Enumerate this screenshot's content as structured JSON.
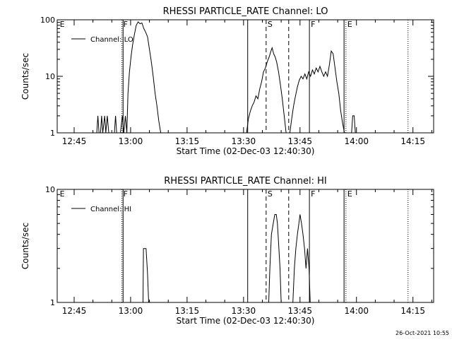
{
  "footer": {
    "timestamp": "26-Oct-2021 10:55"
  },
  "chart_data": [
    {
      "type": "line",
      "title": "RHESSI PARTICLE_RATE Channel: LO",
      "xlabel": "Start Time (02-Dec-03 12:40:30)",
      "ylabel": "Counts/sec",
      "x_unit": "minutes since 12:40:30",
      "xlim": [
        0,
        100
      ],
      "ylim": [
        1,
        100
      ],
      "yscale": "log",
      "xticks": [
        {
          "t": 4.5,
          "label": "12:45"
        },
        {
          "t": 19.5,
          "label": "13:00"
        },
        {
          "t": 34.5,
          "label": "13:15"
        },
        {
          "t": 49.5,
          "label": "13:30"
        },
        {
          "t": 64.5,
          "label": "13:45"
        },
        {
          "t": 79.5,
          "label": "14:00"
        },
        {
          "t": 94.5,
          "label": "14:15"
        }
      ],
      "yticks": [
        {
          "v": 1,
          "label": "1"
        },
        {
          "v": 10,
          "label": "10"
        },
        {
          "v": 100,
          "label": "100"
        }
      ],
      "legend": {
        "label": "Channel: LO",
        "position": "top-left"
      },
      "markers": [
        {
          "t": 0.3,
          "label": "E",
          "style": "none"
        },
        {
          "t": 17.2,
          "label": "F",
          "style": "dotted"
        },
        {
          "t": 17.5,
          "label": "",
          "style": "solid"
        },
        {
          "t": 50.6,
          "label": "",
          "style": "solid"
        },
        {
          "t": 55.5,
          "label": "S",
          "style": "dashed"
        },
        {
          "t": 61.5,
          "label": "",
          "style": "dashed"
        },
        {
          "t": 67.0,
          "label": "F",
          "style": "solid"
        },
        {
          "t": 76.2,
          "label": "",
          "style": "solid"
        },
        {
          "t": 76.7,
          "label": "E",
          "style": "dotted"
        },
        {
          "t": 93.2,
          "label": "",
          "style": "dotted"
        }
      ],
      "series": [
        {
          "name": "Channel: LO",
          "segments": [
            [
              [
                10.5,
                1
              ],
              [
                10.8,
                2
              ],
              [
                11.1,
                1
              ],
              [
                11.5,
                1
              ],
              [
                11.8,
                2
              ],
              [
                12.1,
                1
              ],
              [
                12.6,
                2
              ],
              [
                12.9,
                1
              ],
              [
                13.3,
                2
              ],
              [
                13.7,
                1
              ]
            ],
            [
              [
                15.2,
                1
              ],
              [
                15.5,
                2
              ],
              [
                15.8,
                1
              ]
            ],
            [
              [
                16.8,
                1
              ],
              [
                17.3,
                2
              ],
              [
                17.7,
                1
              ],
              [
                18.1,
                2
              ],
              [
                18.5,
                1
              ],
              [
                18.8,
                5
              ],
              [
                19.2,
                12
              ],
              [
                19.6,
                22
              ],
              [
                20.0,
                35
              ],
              [
                20.5,
                55
              ],
              [
                21.0,
                80
              ],
              [
                21.5,
                92
              ],
              [
                22.0,
                85
              ],
              [
                22.5,
                88
              ],
              [
                23.0,
                70
              ],
              [
                23.5,
                60
              ],
              [
                24.0,
                50
              ],
              [
                24.5,
                30
              ],
              [
                25.0,
                18
              ],
              [
                25.5,
                10
              ],
              [
                26.0,
                5
              ],
              [
                26.5,
                3
              ],
              [
                27.0,
                1.6
              ],
              [
                27.5,
                1
              ]
            ],
            [
              [
                50.3,
                1
              ],
              [
                50.8,
                1.8
              ],
              [
                51.3,
                2.4
              ],
              [
                51.8,
                3
              ],
              [
                52.3,
                3.5
              ],
              [
                52.8,
                4.5
              ],
              [
                53.3,
                4
              ],
              [
                53.8,
                6
              ],
              [
                54.3,
                8
              ],
              [
                54.8,
                12
              ],
              [
                55.3,
                14
              ],
              [
                55.8,
                18
              ],
              [
                56.3,
                22
              ],
              [
                56.8,
                28
              ],
              [
                57.1,
                32
              ],
              [
                57.5,
                25
              ],
              [
                57.9,
                22
              ],
              [
                58.3,
                18
              ],
              [
                58.8,
                12
              ],
              [
                59.3,
                7
              ],
              [
                59.8,
                4
              ],
              [
                60.3,
                2
              ],
              [
                60.8,
                1
              ]
            ],
            [
              [
                61.8,
                1
              ],
              [
                62.3,
                1.8
              ],
              [
                62.8,
                3
              ],
              [
                63.3,
                4.5
              ],
              [
                63.8,
                6.5
              ],
              [
                64.3,
                8.5
              ],
              [
                64.8,
                10
              ],
              [
                65.3,
                9
              ],
              [
                65.8,
                11
              ],
              [
                66.3,
                9
              ],
              [
                66.8,
                12
              ],
              [
                67.3,
                10
              ],
              [
                67.8,
                13
              ],
              [
                68.3,
                11
              ],
              [
                68.8,
                14
              ],
              [
                69.3,
                12
              ],
              [
                69.8,
                15
              ],
              [
                70.3,
                12
              ],
              [
                70.8,
                10
              ],
              [
                71.3,
                12
              ],
              [
                71.8,
                10
              ],
              [
                72.3,
                16
              ],
              [
                72.8,
                28
              ],
              [
                73.3,
                25
              ],
              [
                73.8,
                14
              ],
              [
                74.3,
                8
              ],
              [
                74.8,
                5
              ],
              [
                75.3,
                2.5
              ],
              [
                75.8,
                1.5
              ],
              [
                76.3,
                1
              ]
            ],
            [
              [
                78.2,
                1
              ],
              [
                78.5,
                2
              ],
              [
                78.9,
                2
              ],
              [
                79.2,
                1
              ]
            ]
          ]
        }
      ]
    },
    {
      "type": "line",
      "title": "RHESSI PARTICLE_RATE Channel: HI",
      "xlabel": "Start Time (02-Dec-03 12:40:30)",
      "ylabel": "Counts/sec",
      "x_unit": "minutes since 12:40:30",
      "xlim": [
        0,
        100
      ],
      "ylim": [
        1,
        10
      ],
      "yscale": "log",
      "xticks": [
        {
          "t": 4.5,
          "label": "12:45"
        },
        {
          "t": 19.5,
          "label": "13:00"
        },
        {
          "t": 34.5,
          "label": "13:15"
        },
        {
          "t": 49.5,
          "label": "13:30"
        },
        {
          "t": 64.5,
          "label": "13:45"
        },
        {
          "t": 79.5,
          "label": "14:00"
        },
        {
          "t": 94.5,
          "label": "14:15"
        }
      ],
      "yticks": [
        {
          "v": 1,
          "label": "1"
        },
        {
          "v": 10,
          "label": "10"
        }
      ],
      "legend": {
        "label": "Channel: HI",
        "position": "top-left"
      },
      "markers": [
        {
          "t": 0.3,
          "label": "E",
          "style": "none"
        },
        {
          "t": 17.2,
          "label": "F",
          "style": "dotted"
        },
        {
          "t": 17.5,
          "label": "",
          "style": "solid"
        },
        {
          "t": 50.6,
          "label": "",
          "style": "solid"
        },
        {
          "t": 55.5,
          "label": "S",
          "style": "dashed"
        },
        {
          "t": 61.5,
          "label": "",
          "style": "dashed"
        },
        {
          "t": 67.0,
          "label": "F",
          "style": "solid"
        },
        {
          "t": 76.2,
          "label": "",
          "style": "solid"
        },
        {
          "t": 76.7,
          "label": "E",
          "style": "dotted"
        },
        {
          "t": 93.2,
          "label": "",
          "style": "dotted"
        }
      ],
      "series": [
        {
          "name": "Channel: HI",
          "segments": [
            [
              [
                22.8,
                1
              ],
              [
                22.9,
                3
              ],
              [
                23.6,
                3
              ],
              [
                24.0,
                1.8
              ],
              [
                24.3,
                1
              ]
            ],
            [
              [
                56.2,
                1
              ],
              [
                56.5,
                2
              ],
              [
                56.9,
                4
              ],
              [
                57.4,
                5
              ],
              [
                57.8,
                6
              ],
              [
                58.2,
                6
              ],
              [
                58.5,
                5
              ],
              [
                58.9,
                3
              ],
              [
                59.2,
                2
              ],
              [
                59.5,
                1
              ]
            ],
            [
              [
                62.6,
                1
              ],
              [
                63.0,
                2
              ],
              [
                63.4,
                3
              ],
              [
                63.8,
                4
              ],
              [
                64.2,
                5
              ],
              [
                64.5,
                6
              ],
              [
                64.9,
                5
              ],
              [
                65.3,
                4
              ],
              [
                65.7,
                3
              ],
              [
                66.1,
                2
              ],
              [
                66.5,
                3
              ],
              [
                66.9,
                2
              ],
              [
                67.2,
                1
              ]
            ]
          ]
        }
      ]
    }
  ]
}
